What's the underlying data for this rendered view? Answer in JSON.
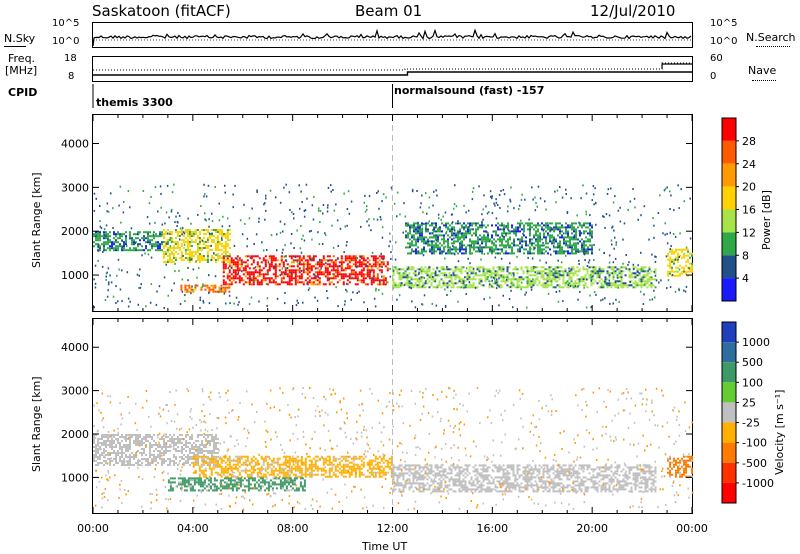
{
  "header": {
    "station": "Saskatoon (fitACF)",
    "beam": "Beam 01",
    "date": "12/Jul/2010"
  },
  "strips": {
    "nsky_label": "N.Sky",
    "nsky_ticks": [
      "10^5",
      "10^0"
    ],
    "nsearch_label": "N.Search",
    "nsearch_ticks": [
      "10^5",
      "10^0"
    ],
    "freq_label": "Freq.",
    "freq_unit": "[MHz]",
    "freq_ticks": [
      "18",
      "8"
    ],
    "nave_label": "Nave",
    "nave_ticks": [
      "60",
      "0"
    ],
    "cpid_label": "CPID",
    "cpid_segments": [
      {
        "label": "themis 3300",
        "start_hour": 0
      },
      {
        "label": "normalsound (fast) -157",
        "start_hour": 12
      }
    ]
  },
  "chart_data": [
    {
      "type": "heatmap",
      "name": "power",
      "ylabel": "Slant Range [km]",
      "xlabel": "Time UT",
      "x_ticks": [
        "00:00",
        "04:00",
        "08:00",
        "12:00",
        "16:00",
        "20:00",
        "00:00"
      ],
      "xlim_hours": [
        0,
        24
      ],
      "y_ticks": [
        1000,
        2000,
        3000,
        4000
      ],
      "ylim_km": [
        180,
        4650
      ],
      "colorbar": {
        "label": "Power [dB]",
        "ticks": [
          "28",
          "24",
          "20",
          "16",
          "12",
          "8",
          "4"
        ],
        "values": [
          28,
          24,
          20,
          16,
          12,
          8,
          4
        ],
        "colors": [
          "#ff0000",
          "#ff5a00",
          "#ff9a00",
          "#ffd200",
          "#a8e34a",
          "#2fa848",
          "#20508a",
          "#1a1aff"
        ]
      },
      "echo_regions": [
        {
          "t": [
            0.0,
            2.8
          ],
          "r": [
            1550,
            2000
          ],
          "level": 8
        },
        {
          "t": [
            2.8,
            5.5
          ],
          "r": [
            1300,
            2050
          ],
          "level": 16
        },
        {
          "t": [
            5.2,
            11.8
          ],
          "r": [
            800,
            1450
          ],
          "level": 28
        },
        {
          "t": [
            3.5,
            5.5
          ],
          "r": [
            600,
            780
          ],
          "level": 22
        },
        {
          "t": [
            12.0,
            22.5
          ],
          "r": [
            700,
            1200
          ],
          "level": 12
        },
        {
          "t": [
            12.5,
            20.0
          ],
          "r": [
            1500,
            2200
          ],
          "level": 6
        },
        {
          "t": [
            23.0,
            24.0
          ],
          "r": [
            1000,
            1600
          ],
          "level": 14
        }
      ]
    },
    {
      "type": "heatmap",
      "name": "velocity",
      "ylabel": "Slant Range [km]",
      "xlabel": "Time UT",
      "x_ticks": [
        "00:00",
        "04:00",
        "08:00",
        "12:00",
        "16:00",
        "20:00",
        "00:00"
      ],
      "xlim_hours": [
        0,
        24
      ],
      "y_ticks": [
        1000,
        2000,
        3000,
        4000
      ],
      "ylim_km": [
        180,
        4650
      ],
      "colorbar": {
        "label": "Velocity [m s⁻¹]",
        "ticks": [
          "1000",
          "500",
          "100",
          "25",
          "-25",
          "-100",
          "-500",
          "-1000"
        ],
        "values": [
          1000,
          500,
          100,
          25,
          -25,
          -100,
          -500,
          -1000
        ],
        "colors": [
          "#1f3fbf",
          "#2c6e9e",
          "#3d9a66",
          "#66cc33",
          "#c0c0c0",
          "#ffb000",
          "#ff7a00",
          "#ff3000",
          "#ff0000"
        ]
      },
      "echo_regions": [
        {
          "t": [
            0.0,
            5.0
          ],
          "r": [
            1300,
            2000
          ],
          "level": 0
        },
        {
          "t": [
            4.0,
            12.0
          ],
          "r": [
            1000,
            1500
          ],
          "level": -100
        },
        {
          "t": [
            3.0,
            8.5
          ],
          "r": [
            700,
            1000
          ],
          "level": 100
        },
        {
          "t": [
            12.0,
            22.5
          ],
          "r": [
            700,
            1300
          ],
          "level": 0
        },
        {
          "t": [
            23.0,
            24.0
          ],
          "r": [
            1000,
            1500
          ],
          "level": -500
        }
      ]
    }
  ],
  "xaxis_label": "Time UT"
}
